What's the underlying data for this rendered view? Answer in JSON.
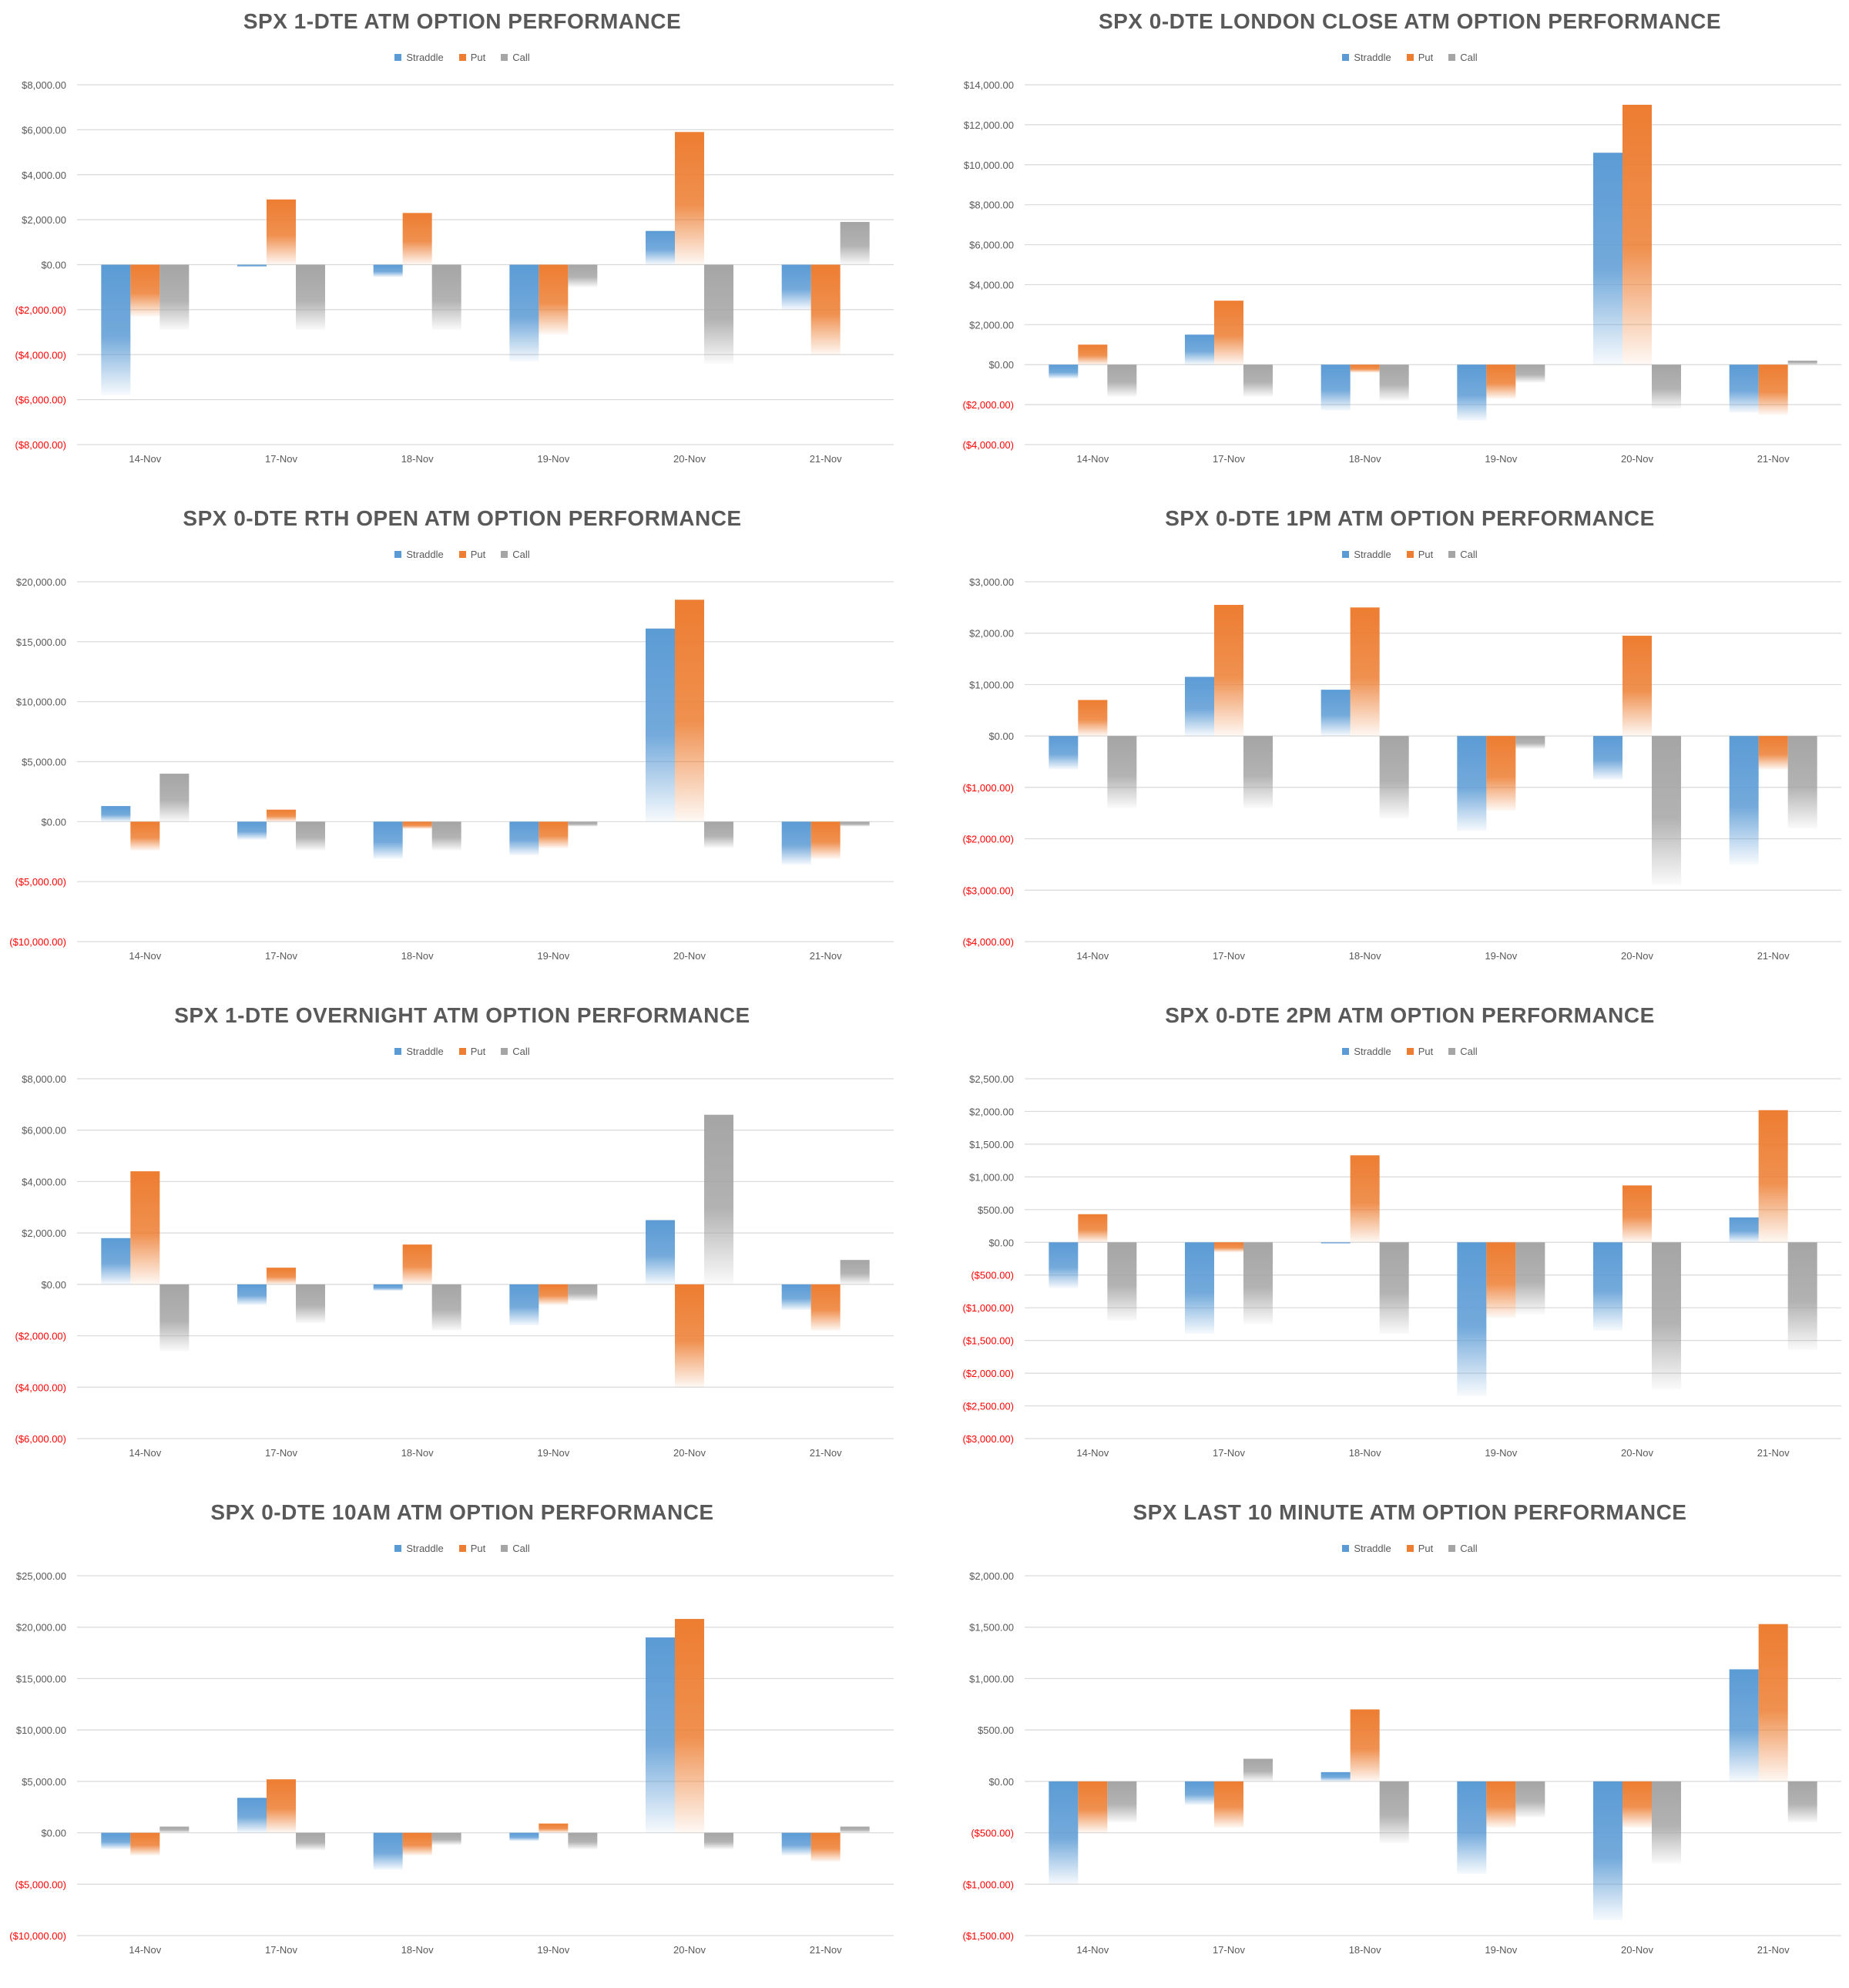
{
  "legend": {
    "straddle": "Straddle",
    "put": "Put",
    "call": "Call"
  },
  "colors": {
    "straddle": "#5b9bd5",
    "put": "#ed7d31",
    "call": "#a5a5a5",
    "negative_label": "#ff0000",
    "axis_label": "#595959",
    "gridline": "#d9d9d9"
  },
  "chart_data": [
    {
      "type": "bar",
      "title": "SPX 1-DTE ATM OPTION PERFORMANCE",
      "categories": [
        "14-Nov",
        "17-Nov",
        "18-Nov",
        "19-Nov",
        "20-Nov",
        "21-Nov"
      ],
      "yticks": [
        -8000,
        -6000,
        -4000,
        -2000,
        0,
        2000,
        4000,
        6000,
        8000
      ],
      "ytick_labels": [
        "($8,000.00)",
        "($6,000.00)",
        "($4,000.00)",
        "($2,000.00)",
        "$0.00",
        "$2,000.00",
        "$4,000.00",
        "$6,000.00",
        "$8,000.00"
      ],
      "ylim": [
        -8000,
        8000
      ],
      "series": [
        {
          "name": "Straddle",
          "values": [
            -5800,
            -100,
            -550,
            -4300,
            1500,
            -2000
          ]
        },
        {
          "name": "Put",
          "values": [
            -2300,
            2900,
            2300,
            -3100,
            5900,
            -4000
          ]
        },
        {
          "name": "Call",
          "values": [
            -2900,
            -2900,
            -2900,
            -1000,
            -4400,
            1900
          ]
        }
      ]
    },
    {
      "type": "bar",
      "title": "SPX 0-DTE  LONDON CLOSE ATM OPTION PERFORMANCE",
      "categories": [
        "14-Nov",
        "17-Nov",
        "18-Nov",
        "19-Nov",
        "20-Nov",
        "21-Nov"
      ],
      "yticks": [
        -4000,
        -2000,
        0,
        2000,
        4000,
        6000,
        8000,
        10000,
        12000,
        14000
      ],
      "ytick_labels": [
        "($4,000.00)",
        "($2,000.00)",
        "$0.00",
        "$2,000.00",
        "$4,000.00",
        "$6,000.00",
        "$8,000.00",
        "$10,000.00",
        "$12,000.00",
        "$14,000.00"
      ],
      "ylim": [
        -4000,
        14000
      ],
      "series": [
        {
          "name": "Straddle",
          "values": [
            -700,
            1500,
            -2300,
            -2800,
            10600,
            -2400
          ]
        },
        {
          "name": "Put",
          "values": [
            1000,
            3200,
            -400,
            -1700,
            13000,
            -2500
          ]
        },
        {
          "name": "Call",
          "values": [
            -1600,
            -1600,
            -1800,
            -900,
            -2200,
            200
          ]
        }
      ]
    },
    {
      "type": "bar",
      "title": "SPX 0-DTE RTH OPEN ATM OPTION PERFORMANCE",
      "categories": [
        "14-Nov",
        "17-Nov",
        "18-Nov",
        "19-Nov",
        "20-Nov",
        "21-Nov"
      ],
      "yticks": [
        -10000,
        -5000,
        0,
        5000,
        10000,
        15000,
        20000
      ],
      "ytick_labels": [
        "($10,000.00)",
        "($5,000.00)",
        "$0.00",
        "$5,000.00",
        "$10,000.00",
        "$15,000.00",
        "$20,000.00"
      ],
      "ylim": [
        -10000,
        20000
      ],
      "series": [
        {
          "name": "Straddle",
          "values": [
            1300,
            -1500,
            -3100,
            -2800,
            16100,
            -3600
          ]
        },
        {
          "name": "Put",
          "values": [
            -2400,
            1000,
            -600,
            -2200,
            18500,
            -3100
          ]
        },
        {
          "name": "Call",
          "values": [
            4000,
            -2400,
            -2400,
            -400,
            -2200,
            -400
          ]
        }
      ]
    },
    {
      "type": "bar",
      "title": "SPX 0-DTE 1PM ATM OPTION PERFORMANCE",
      "categories": [
        "14-Nov",
        "17-Nov",
        "18-Nov",
        "19-Nov",
        "20-Nov",
        "21-Nov"
      ],
      "yticks": [
        -4000,
        -3000,
        -2000,
        -1000,
        0,
        1000,
        2000,
        3000
      ],
      "ytick_labels": [
        "($4,000.00)",
        "($3,000.00)",
        "($2,000.00)",
        "($1,000.00)",
        "$0.00",
        "$1,000.00",
        "$2,000.00",
        "$3,000.00"
      ],
      "ylim": [
        -4000,
        3000
      ],
      "series": [
        {
          "name": "Straddle",
          "values": [
            -650,
            1150,
            900,
            -1850,
            -850,
            -2500
          ]
        },
        {
          "name": "Put",
          "values": [
            700,
            2550,
            2500,
            -1450,
            1950,
            -650
          ]
        },
        {
          "name": "Call",
          "values": [
            -1400,
            -1400,
            -1600,
            -250,
            -2900,
            -1800
          ]
        }
      ]
    },
    {
      "type": "bar",
      "title": "SPX 1-DTE OVERNIGHT ATM OPTION PERFORMANCE",
      "categories": [
        "14-Nov",
        "17-Nov",
        "18-Nov",
        "19-Nov",
        "20-Nov",
        "21-Nov"
      ],
      "yticks": [
        -6000,
        -4000,
        -2000,
        0,
        2000,
        4000,
        6000,
        8000
      ],
      "ytick_labels": [
        "($6,000.00)",
        "($4,000.00)",
        "($2,000.00)",
        "$0.00",
        "$2,000.00",
        "$4,000.00",
        "$6,000.00",
        "$8,000.00"
      ],
      "ylim": [
        -6000,
        8000
      ],
      "series": [
        {
          "name": "Straddle",
          "values": [
            1800,
            -800,
            -250,
            -1600,
            2500,
            -1000
          ]
        },
        {
          "name": "Put",
          "values": [
            4400,
            650,
            1550,
            -800,
            -4000,
            -1800
          ]
        },
        {
          "name": "Call",
          "values": [
            -2600,
            -1500,
            -1800,
            -650,
            6600,
            950
          ]
        }
      ]
    },
    {
      "type": "bar",
      "title": "SPX 0-DTE 2PM ATM OPTION PERFORMANCE",
      "categories": [
        "14-Nov",
        "17-Nov",
        "18-Nov",
        "19-Nov",
        "20-Nov",
        "21-Nov"
      ],
      "yticks": [
        -3000,
        -2500,
        -2000,
        -1500,
        -1000,
        -500,
        0,
        500,
        1000,
        1500,
        2000,
        2500
      ],
      "ytick_labels": [
        "($3,000.00)",
        "($2,500.00)",
        "($2,000.00)",
        "($1,500.00)",
        "($1,000.00)",
        "($500.00)",
        "$0.00",
        "$500.00",
        "$1,000.00",
        "$1,500.00",
        "$2,000.00",
        "$2,500.00"
      ],
      "ylim": [
        -3000,
        2500
      ],
      "series": [
        {
          "name": "Straddle",
          "values": [
            -700,
            -1400,
            -20,
            -2350,
            -1350,
            380
          ]
        },
        {
          "name": "Put",
          "values": [
            430,
            -150,
            1330,
            -1150,
            870,
            2020
          ]
        },
        {
          "name": "Call",
          "values": [
            -1200,
            -1250,
            -1400,
            -1100,
            -2250,
            -1650
          ]
        }
      ]
    },
    {
      "type": "bar",
      "title": "SPX 0-DTE 10AM ATM OPTION PERFORMANCE",
      "categories": [
        "14-Nov",
        "17-Nov",
        "18-Nov",
        "19-Nov",
        "20-Nov",
        "21-Nov"
      ],
      "yticks": [
        -10000,
        -5000,
        0,
        5000,
        10000,
        15000,
        20000,
        25000
      ],
      "ytick_labels": [
        "($10,000.00)",
        "($5,000.00)",
        "$0.00",
        "$5,000.00",
        "$10,000.00",
        "$15,000.00",
        "$20,000.00",
        "$25,000.00"
      ],
      "ylim": [
        -10000,
        25000
      ],
      "series": [
        {
          "name": "Straddle",
          "values": [
            -1600,
            3400,
            -3600,
            -800,
            19000,
            -2200
          ]
        },
        {
          "name": "Put",
          "values": [
            -2200,
            5200,
            -2200,
            900,
            20800,
            -2800
          ]
        },
        {
          "name": "Call",
          "values": [
            600,
            -1700,
            -1200,
            -1600,
            -1600,
            600
          ]
        }
      ]
    },
    {
      "type": "bar",
      "title": "SPX LAST 10 MINUTE ATM OPTION PERFORMANCE",
      "categories": [
        "14-Nov",
        "17-Nov",
        "18-Nov",
        "19-Nov",
        "20-Nov",
        "21-Nov"
      ],
      "yticks": [
        -1500,
        -1000,
        -500,
        0,
        500,
        1000,
        1500,
        2000
      ],
      "ytick_labels": [
        "($1,500.00)",
        "($1,000.00)",
        "($500.00)",
        "$0.00",
        "$500.00",
        "$1,000.00",
        "$1,500.00",
        "$2,000.00"
      ],
      "ylim": [
        -1500,
        2000
      ],
      "series": [
        {
          "name": "Straddle",
          "values": [
            -1000,
            -230,
            90,
            -900,
            -1350,
            1090
          ]
        },
        {
          "name": "Put",
          "values": [
            -500,
            -450,
            700,
            -450,
            -450,
            1530
          ]
        },
        {
          "name": "Call",
          "values": [
            -400,
            220,
            -600,
            -350,
            -800,
            -400
          ]
        }
      ]
    }
  ]
}
